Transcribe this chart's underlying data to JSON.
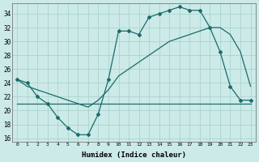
{
  "xlabel": "Humidex (Indice chaleur)",
  "x_ticks": [
    0,
    1,
    2,
    3,
    4,
    5,
    6,
    7,
    8,
    9,
    10,
    11,
    12,
    13,
    14,
    15,
    16,
    17,
    18,
    19,
    20,
    21,
    22,
    23
  ],
  "ylim": [
    15.5,
    35.5
  ],
  "xlim": [
    -0.5,
    23.5
  ],
  "y_ticks": [
    16,
    18,
    20,
    22,
    24,
    26,
    28,
    30,
    32,
    34
  ],
  "bg_color": "#cceae7",
  "grid_color": "#aad4d0",
  "line_color": "#1a6b6b",
  "series1_x": [
    0,
    1,
    2,
    3,
    4,
    5,
    6,
    7,
    8,
    9,
    10,
    11,
    12,
    13,
    14,
    15,
    16,
    17,
    18,
    19,
    20,
    21,
    22,
    23
  ],
  "series1_y": [
    24.5,
    24.0,
    22.0,
    21.0,
    19.0,
    17.5,
    16.5,
    16.5,
    19.5,
    24.5,
    31.5,
    31.5,
    31.0,
    33.5,
    34.0,
    34.5,
    35.0,
    34.5,
    34.5,
    32.0,
    28.5,
    23.5,
    21.5,
    21.5
  ],
  "series2_x": [
    0,
    1,
    2,
    3,
    4,
    5,
    6,
    7,
    8,
    9,
    10,
    11,
    12,
    13,
    14,
    15,
    16,
    17,
    18,
    19,
    20,
    21,
    22,
    23
  ],
  "series2_y": [
    21.0,
    21.0,
    21.0,
    21.0,
    21.0,
    21.0,
    21.0,
    21.0,
    21.0,
    21.0,
    21.0,
    21.0,
    21.0,
    21.0,
    21.0,
    21.0,
    21.0,
    21.0,
    21.0,
    21.0,
    21.0,
    21.0,
    21.0,
    21.0
  ],
  "series3_x": [
    0,
    1,
    2,
    3,
    4,
    5,
    6,
    7,
    8,
    9,
    10,
    11,
    12,
    13,
    14,
    15,
    16,
    17,
    18,
    19,
    20,
    21,
    22,
    23
  ],
  "series3_y": [
    24.5,
    23.5,
    23.0,
    22.5,
    22.0,
    21.5,
    21.0,
    20.5,
    21.5,
    23.0,
    25.0,
    26.0,
    27.0,
    28.0,
    29.0,
    30.0,
    30.5,
    31.0,
    31.5,
    32.0,
    32.0,
    31.0,
    28.5,
    23.5
  ]
}
